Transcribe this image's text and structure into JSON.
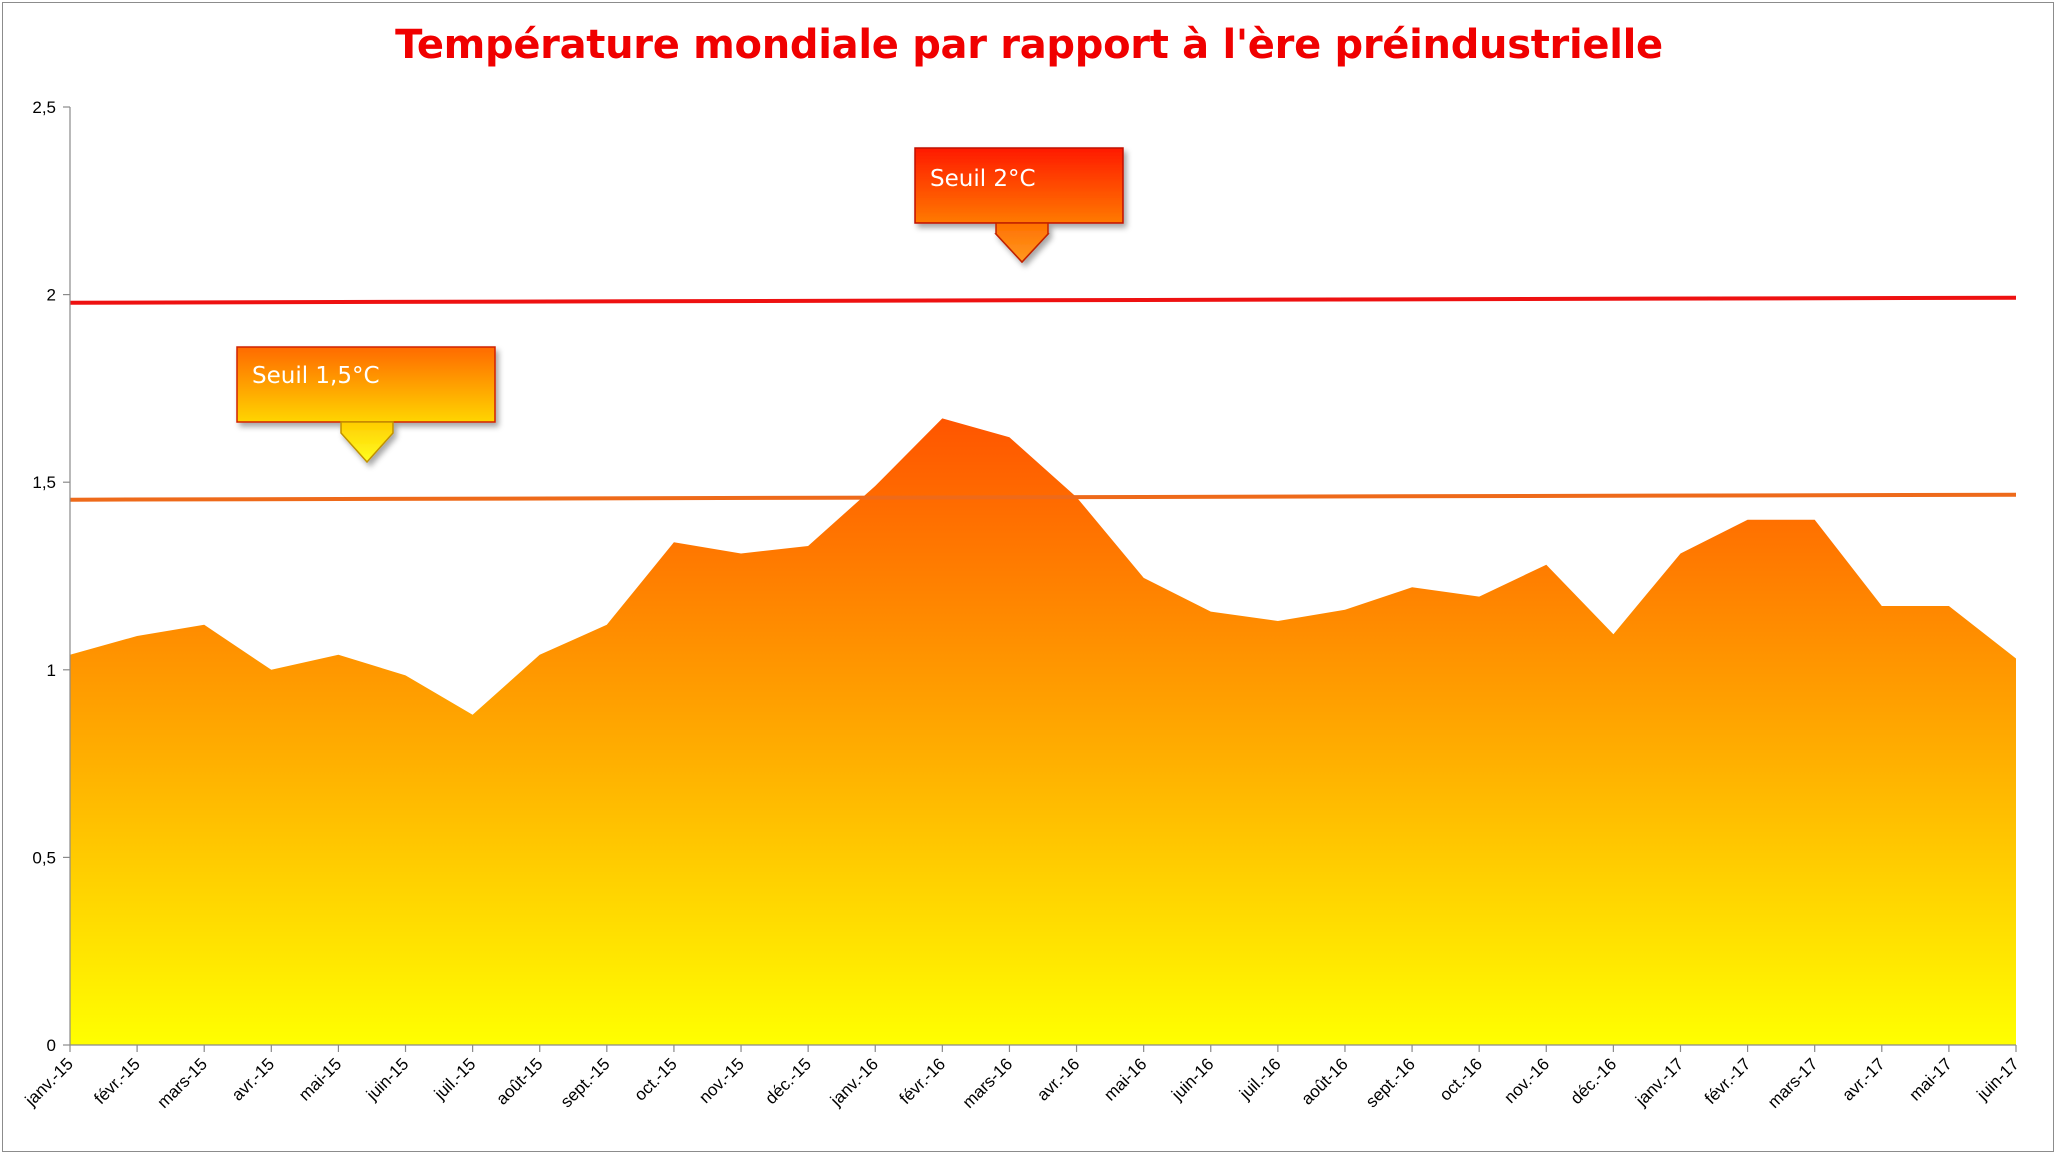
{
  "chart_data": {
    "type": "area",
    "title": "Température mondiale par rapport à l'ère préindustrielle",
    "xlabel": "",
    "ylabel": "",
    "ylim": [
      0,
      2.5
    ],
    "y_ticks": [
      "0",
      "0,5",
      "1",
      "1,5",
      "2",
      "2,5"
    ],
    "y_tick_values": [
      0,
      0.5,
      1,
      1.5,
      2,
      2.5
    ],
    "grid": false,
    "categories": [
      "janv.-15",
      "févr.-15",
      "mars-15",
      "avr.-15",
      "mai-15",
      "juin-15",
      "juil.-15",
      "août-15",
      "sept.-15",
      "oct.-15",
      "nov.-15",
      "déc.-15",
      "janv.-16",
      "févr.-16",
      "mars-16",
      "avr.-16",
      "mai-16",
      "juin-16",
      "juil.-16",
      "août-16",
      "sept.-16",
      "oct.-16",
      "nov.-16",
      "déc.-16",
      "janv.-17",
      "févr.-17",
      "mars-17",
      "avr.-17",
      "mai-17",
      "juin-17"
    ],
    "series": [
      {
        "values": [
          1.04,
          1.09,
          1.12,
          1.0,
          1.04,
          0.985,
          0.88,
          1.04,
          1.12,
          1.34,
          1.31,
          1.33,
          1.49,
          1.67,
          1.62,
          1.46,
          1.245,
          1.155,
          1.13,
          1.16,
          1.22,
          1.195,
          1.28,
          1.095,
          1.31,
          1.4,
          1.4,
          1.17,
          1.17,
          1.03
        ]
      }
    ],
    "thresholds": [
      {
        "value": 1.985,
        "color": "#ee1111",
        "label": "Seuil 2°C"
      },
      {
        "value": 1.46,
        "color": "#ee6a1a",
        "label": "Seuil 1,5°C"
      }
    ],
    "fill_colors": {
      "top": "#ff5500",
      "mid": "#ffb000",
      "bottom": "#ffff00"
    }
  }
}
